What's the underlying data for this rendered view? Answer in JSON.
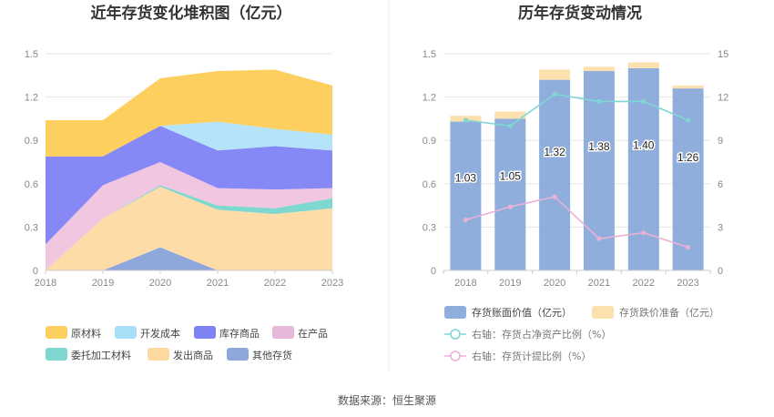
{
  "source_text": "数据来源：恒生聚源",
  "chart_data": [
    {
      "type": "area",
      "stacked": true,
      "title": "近年存货变化堆积图（亿元）",
      "categories": [
        "2018",
        "2019",
        "2020",
        "2021",
        "2022",
        "2023"
      ],
      "ylim": [
        0,
        1.5
      ],
      "yticks": [
        "0",
        "0.3",
        "0.6",
        "0.9",
        "1.2",
        "1.5"
      ],
      "series": [
        {
          "name": "其他存货",
          "color": "#8FA8DC",
          "values": [
            0.0,
            0.0,
            0.16,
            0.0,
            0.0,
            0.0
          ]
        },
        {
          "name": "发出商品",
          "color": "#FDDCA8",
          "values": [
            0.0,
            0.36,
            0.42,
            0.42,
            0.39,
            0.43
          ]
        },
        {
          "name": "委托加工材料",
          "color": "#7FD8D0",
          "values": [
            0.0,
            0.0,
            0.01,
            0.03,
            0.04,
            0.07
          ]
        },
        {
          "name": "在产品",
          "color": "#F1C6E0",
          "values": [
            0.18,
            0.23,
            0.16,
            0.12,
            0.13,
            0.07
          ]
        },
        {
          "name": "库存商品",
          "color": "#8688F5",
          "values": [
            0.61,
            0.2,
            0.25,
            0.26,
            0.3,
            0.26
          ]
        },
        {
          "name": "开发成本",
          "color": "#B5E4FA",
          "values": [
            0.0,
            0.0,
            0.0,
            0.2,
            0.12,
            0.11
          ]
        },
        {
          "name": "原材料",
          "color": "#FCCF5E",
          "values": [
            0.25,
            0.25,
            0.33,
            0.35,
            0.41,
            0.34
          ]
        }
      ],
      "legend": [
        {
          "name": "原材料",
          "color": "#FCCF5E"
        },
        {
          "name": "开发成本",
          "color": "#A9DEF9"
        },
        {
          "name": "库存商品",
          "color": "#7F82F2"
        },
        {
          "name": "在产品",
          "color": "#E7B8DA"
        },
        {
          "name": "委托加工材料",
          "color": "#7FD8D0"
        },
        {
          "name": "发出商品",
          "color": "#FDD9A0"
        },
        {
          "name": "其他存货",
          "color": "#8FA8DC"
        }
      ]
    },
    {
      "type": "bar",
      "stacked": true,
      "title": "历年存货变动情况",
      "categories": [
        "2018",
        "2019",
        "2020",
        "2021",
        "2022",
        "2023"
      ],
      "ylim": [
        0,
        1.5
      ],
      "yticks": [
        "0",
        "0.3",
        "0.6",
        "0.9",
        "1.2",
        "1.5"
      ],
      "y2lim": [
        0,
        15
      ],
      "y2ticks": [
        "0",
        "3",
        "6",
        "9",
        "12",
        "15"
      ],
      "bar_series": [
        {
          "name": "存货账面价值（亿元）",
          "color": "#8FAEDC",
          "values": [
            1.03,
            1.05,
            1.32,
            1.38,
            1.4,
            1.26
          ],
          "labels": [
            "1.03",
            "1.05",
            "1.32",
            "1.38",
            "1.40",
            "1.26"
          ]
        },
        {
          "name": "存货跌价准备（亿元）",
          "color": "#FCE0AE",
          "values": [
            0.04,
            0.05,
            0.07,
            0.03,
            0.04,
            0.02
          ]
        }
      ],
      "line_series": [
        {
          "name": "右轴：存货占净资产比例（%）",
          "color": "#7FD6D4",
          "values": [
            10.4,
            10.0,
            12.2,
            11.7,
            11.7,
            10.4
          ]
        },
        {
          "name": "右轴：存货计提比例（%）",
          "color": "#EBB0D8",
          "values": [
            3.5,
            4.4,
            5.1,
            2.2,
            2.6,
            1.6
          ]
        }
      ]
    }
  ]
}
